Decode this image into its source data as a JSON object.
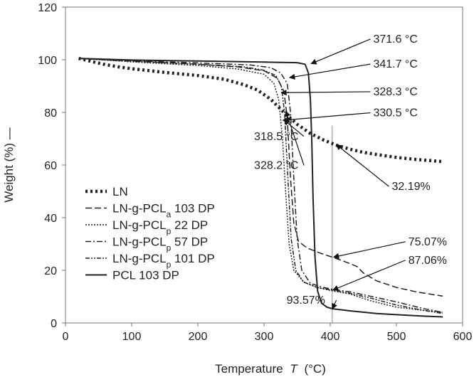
{
  "chart_data": {
    "type": "line",
    "xlabel": "Temperature",
    "xlabel_var": "T",
    "xlabel_unit": "(°C)",
    "ylabel": "Weight  (%) —",
    "xlim": [
      0,
      600
    ],
    "ylim": [
      0,
      120
    ],
    "xticks": [
      "0",
      "100",
      "200",
      "300",
      "400",
      "500",
      "600"
    ],
    "yticks": [
      "0",
      "20",
      "40",
      "60",
      "80",
      "100",
      "120"
    ],
    "grid": false,
    "legend_position": "left",
    "series": [
      {
        "name": "LN",
        "name_base": "LN",
        "name_sub": "",
        "name_suffix": "",
        "dash": "3,4",
        "width": 4.5,
        "color": "#222222",
        "points": [
          [
            20,
            100.5
          ],
          [
            40,
            99.3
          ],
          [
            60,
            98.2
          ],
          [
            80,
            97.3
          ],
          [
            100,
            96.6
          ],
          [
            150,
            95.2
          ],
          [
            200,
            94.0
          ],
          [
            240,
            92.6
          ],
          [
            270,
            90.5
          ],
          [
            290,
            88.5
          ],
          [
            310,
            85
          ],
          [
            330,
            80
          ],
          [
            350,
            75.5
          ],
          [
            370,
            72
          ],
          [
            390,
            69.5
          ],
          [
            410,
            67.5
          ],
          [
            430,
            66
          ],
          [
            450,
            64.8
          ],
          [
            475,
            63.8
          ],
          [
            500,
            62.9
          ],
          [
            530,
            62.1
          ],
          [
            570,
            61.3
          ]
        ]
      },
      {
        "name": "LN-g-PCLa 103 DP",
        "name_base": "LN-g-PCL",
        "name_sub": "a",
        "name_suffix": " 103 DP",
        "dash": "9,4",
        "width": 1.5,
        "color": "#222222",
        "points": [
          [
            20,
            100.5
          ],
          [
            100,
            99.5
          ],
          [
            200,
            98.3
          ],
          [
            260,
            97.3
          ],
          [
            300,
            95.8
          ],
          [
            320,
            93
          ],
          [
            330,
            88
          ],
          [
            335,
            78
          ],
          [
            340,
            55
          ],
          [
            345,
            38
          ],
          [
            352,
            31
          ],
          [
            365,
            28.5
          ],
          [
            385,
            26.5
          ],
          [
            403,
            25.0
          ],
          [
            420,
            23.5
          ],
          [
            440,
            21.5
          ],
          [
            450,
            19
          ],
          [
            470,
            16
          ],
          [
            500,
            13.5
          ],
          [
            530,
            11.8
          ],
          [
            570,
            10.2
          ]
        ]
      },
      {
        "name": "LN-g-PCLp 22 DP",
        "name_base": "LN-g-PCL",
        "name_sub": "p",
        "name_suffix": " 22 DP",
        "dash": "2,2",
        "width": 1.5,
        "color": "#222222",
        "points": [
          [
            20,
            100.5
          ],
          [
            100,
            99.2
          ],
          [
            200,
            97.8
          ],
          [
            260,
            96.5
          ],
          [
            300,
            94.5
          ],
          [
            315,
            91
          ],
          [
            322,
            85
          ],
          [
            328,
            70
          ],
          [
            333,
            48
          ],
          [
            338,
            30
          ],
          [
            345,
            20
          ],
          [
            360,
            15.5
          ],
          [
            380,
            13.5
          ],
          [
            403,
            12.2
          ],
          [
            430,
            11
          ],
          [
            460,
            8.5
          ],
          [
            500,
            6
          ],
          [
            540,
            4.8
          ],
          [
            570,
            4
          ]
        ]
      },
      {
        "name": "LN-g-PCLp 57 DP",
        "name_base": "LN-g-PCL",
        "name_sub": "p",
        "name_suffix": " 57 DP",
        "dash": "8,3,2,3",
        "width": 1.5,
        "color": "#222222",
        "points": [
          [
            20,
            100.5
          ],
          [
            100,
            99.6
          ],
          [
            200,
            98.8
          ],
          [
            280,
            98
          ],
          [
            310,
            97
          ],
          [
            325,
            95
          ],
          [
            335,
            91
          ],
          [
            340,
            80
          ],
          [
            345,
            55
          ],
          [
            350,
            32
          ],
          [
            357,
            20
          ],
          [
            370,
            15
          ],
          [
            390,
            13.5
          ],
          [
            403,
            12.8
          ],
          [
            430,
            11.8
          ],
          [
            460,
            10.2
          ],
          [
            500,
            8
          ],
          [
            540,
            5.5
          ],
          [
            570,
            4
          ]
        ]
      },
      {
        "name": "LN-g-PCLp 101 DP",
        "name_base": "LN-g-PCL",
        "name_sub": "p",
        "name_suffix": " 101 DP",
        "dash": "6,2,2,2,2,2",
        "width": 1.5,
        "color": "#222222",
        "points": [
          [
            20,
            100.5
          ],
          [
            100,
            99.4
          ],
          [
            200,
            98.3
          ],
          [
            270,
            97.3
          ],
          [
            300,
            96
          ],
          [
            318,
            94
          ],
          [
            326,
            90
          ],
          [
            331,
            80
          ],
          [
            336,
            55
          ],
          [
            341,
            32
          ],
          [
            348,
            20
          ],
          [
            360,
            15.5
          ],
          [
            380,
            13.5
          ],
          [
            403,
            12.5
          ],
          [
            430,
            11.3
          ],
          [
            460,
            9.5
          ],
          [
            500,
            6.8
          ],
          [
            540,
            4.8
          ],
          [
            570,
            3.6
          ]
        ]
      },
      {
        "name": "PCL 103 DP",
        "name_base": "PCL 103 DP",
        "name_sub": "",
        "name_suffix": "",
        "dash": "",
        "width": 2,
        "color": "#222222",
        "points": [
          [
            20,
            100.5
          ],
          [
            100,
            99.9
          ],
          [
            200,
            99.5
          ],
          [
            300,
            99.1
          ],
          [
            350,
            98.9
          ],
          [
            362,
            98.3
          ],
          [
            367,
            95
          ],
          [
            370,
            85
          ],
          [
            372,
            70
          ],
          [
            374,
            48
          ],
          [
            377,
            25
          ],
          [
            381,
            12
          ],
          [
            387,
            7.5
          ],
          [
            395,
            6
          ],
          [
            403,
            5.4
          ],
          [
            430,
            4.6
          ],
          [
            470,
            3.6
          ],
          [
            510,
            3
          ],
          [
            540,
            2.6
          ],
          [
            570,
            2.3
          ]
        ]
      }
    ],
    "vertical_marker": {
      "x": 403
    },
    "annotations": [
      {
        "text": "371.6 °C",
        "tx": 465,
        "ty": 106.5,
        "ax": 371,
        "ay": 98.5
      },
      {
        "text": "341.7 °C",
        "tx": 465,
        "ty": 97,
        "ax": 338.5,
        "ay": 93.2
      },
      {
        "text": "328.3 °C",
        "tx": 465,
        "ty": 86.5,
        "ax": 326,
        "ay": 87.5
      },
      {
        "text": "330.5 °C",
        "tx": 465,
        "ty": 78.5,
        "ax": 328.5,
        "ay": 77.0
      },
      {
        "text": "318.5 °C",
        "tx": 285,
        "ty": 69.5,
        "ax": 330,
        "ay": 77.2
      },
      {
        "text": "328.2 °C",
        "tx": 285,
        "ty": 58.5,
        "ax": 333,
        "ay": 80.5
      },
      {
        "text": "32.19%",
        "tx": 493,
        "ty": 50.5,
        "ax": 409,
        "ay": 67.8
      },
      {
        "text": "75.07%",
        "tx": 518,
        "ty": 29.5,
        "ax": 405,
        "ay": 25.0
      },
      {
        "text": "87.06%",
        "tx": 518,
        "ty": 22.5,
        "ax": 404,
        "ay": 12.5
      },
      {
        "text": "93.57%",
        "tx": 334,
        "ty": 7.3,
        "ax": 403,
        "ay": 5.3
      }
    ]
  }
}
